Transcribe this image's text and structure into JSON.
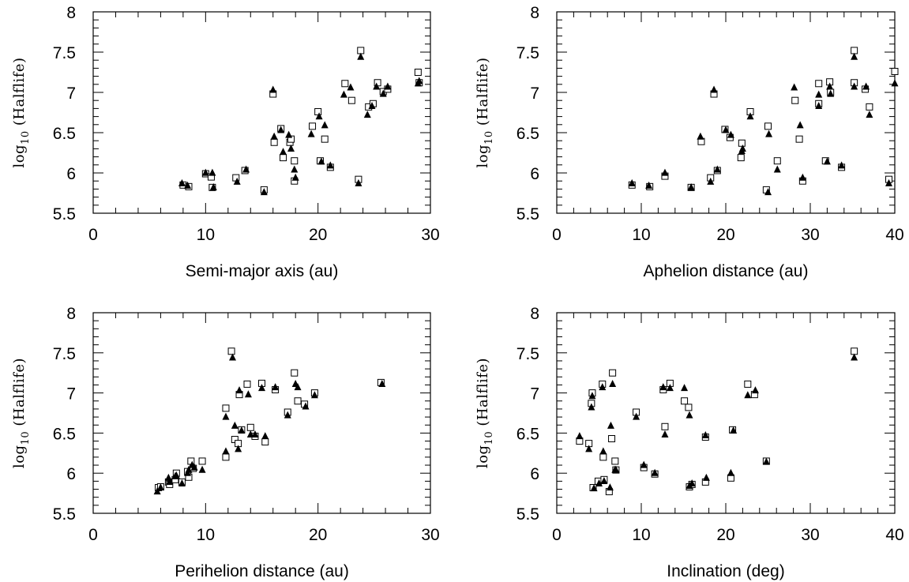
{
  "chart_data": [
    {
      "type": "scatter",
      "id": "semi-major-axis",
      "xlabel": "Semi-major axis (au)",
      "ylabel_base": "log",
      "ylabel_sub": "10",
      "ylabel_rest": " (Halflife)",
      "xlim": [
        0,
        30
      ],
      "ylim": [
        5.5,
        8
      ],
      "xticks": [
        0,
        10,
        20,
        30
      ],
      "yticks": [
        5.5,
        6,
        6.5,
        7,
        7.5,
        8
      ],
      "x_minor_step": 2,
      "y_minor_step": 0.1,
      "series": [
        {
          "marker": "open-square",
          "points": [
            [
              8.0,
              5.85
            ],
            [
              8.5,
              5.83
            ],
            [
              10.0,
              5.99
            ],
            [
              10.5,
              5.95
            ],
            [
              10.6,
              5.82
            ],
            [
              12.7,
              5.94
            ],
            [
              13.5,
              6.03
            ],
            [
              15.2,
              5.79
            ],
            [
              16.0,
              6.98
            ],
            [
              16.1,
              6.38
            ],
            [
              16.7,
              6.55
            ],
            [
              16.9,
              6.19
            ],
            [
              17.5,
              6.38
            ],
            [
              17.6,
              6.42
            ],
            [
              17.9,
              5.9
            ],
            [
              17.9,
              6.15
            ],
            [
              19.5,
              6.58
            ],
            [
              20.0,
              6.76
            ],
            [
              20.2,
              6.15
            ],
            [
              20.6,
              6.42
            ],
            [
              21.1,
              6.07
            ],
            [
              22.4,
              7.11
            ],
            [
              23.0,
              6.9
            ],
            [
              23.6,
              5.92
            ],
            [
              23.8,
              7.52
            ],
            [
              24.5,
              6.82
            ],
            [
              24.9,
              6.86
            ],
            [
              25.3,
              7.12
            ],
            [
              25.8,
              7.01
            ],
            [
              26.2,
              7.04
            ],
            [
              28.9,
              7.25
            ],
            [
              29.0,
              7.12
            ]
          ]
        },
        {
          "marker": "filled-triangle",
          "points": [
            [
              7.9,
              5.87
            ],
            [
              8.4,
              5.84
            ],
            [
              10.0,
              6.0
            ],
            [
              10.6,
              6.0
            ],
            [
              10.7,
              5.82
            ],
            [
              12.8,
              5.89
            ],
            [
              13.6,
              6.04
            ],
            [
              15.2,
              5.76
            ],
            [
              16.0,
              7.03
            ],
            [
              16.1,
              6.45
            ],
            [
              16.7,
              6.53
            ],
            [
              16.9,
              6.26
            ],
            [
              17.4,
              6.47
            ],
            [
              17.6,
              6.3
            ],
            [
              17.9,
              6.04
            ],
            [
              18.0,
              5.94
            ],
            [
              19.4,
              6.48
            ],
            [
              20.1,
              6.7
            ],
            [
              20.3,
              6.14
            ],
            [
              20.6,
              6.59
            ],
            [
              21.1,
              6.09
            ],
            [
              22.3,
              6.97
            ],
            [
              22.9,
              7.06
            ],
            [
              23.6,
              5.87
            ],
            [
              23.8,
              7.44
            ],
            [
              24.4,
              6.72
            ],
            [
              24.8,
              6.83
            ],
            [
              25.2,
              7.07
            ],
            [
              25.8,
              6.98
            ],
            [
              26.2,
              7.07
            ],
            [
              28.9,
              7.11
            ],
            [
              29.0,
              7.14
            ]
          ]
        }
      ]
    },
    {
      "type": "scatter",
      "id": "aphelion-distance",
      "xlabel": "Aphelion distance (au)",
      "ylabel_base": "log",
      "ylabel_sub": "10",
      "ylabel_rest": " (Halflife)",
      "xlim": [
        0,
        40
      ],
      "ylim": [
        5.5,
        8
      ],
      "xticks": [
        0,
        10,
        20,
        30,
        40
      ],
      "yticks": [
        5.5,
        6,
        6.5,
        7,
        7.5,
        8
      ],
      "x_minor_step": 2,
      "y_minor_step": 0.1,
      "series": [
        {
          "marker": "open-square",
          "points": [
            [
              8.9,
              5.85
            ],
            [
              11.0,
              5.83
            ],
            [
              12.8,
              5.96
            ],
            [
              15.9,
              5.82
            ],
            [
              17.1,
              6.39
            ],
            [
              18.2,
              5.94
            ],
            [
              18.6,
              6.98
            ],
            [
              19.0,
              6.03
            ],
            [
              19.9,
              6.54
            ],
            [
              20.5,
              6.44
            ],
            [
              21.8,
              6.19
            ],
            [
              21.9,
              6.37
            ],
            [
              22.9,
              6.76
            ],
            [
              24.8,
              5.79
            ],
            [
              25.0,
              6.58
            ],
            [
              26.1,
              6.15
            ],
            [
              28.2,
              6.9
            ],
            [
              28.7,
              6.42
            ],
            [
              29.1,
              5.9
            ],
            [
              31.0,
              7.11
            ],
            [
              31.0,
              6.86
            ],
            [
              31.8,
              6.15
            ],
            [
              32.3,
              7.13
            ],
            [
              32.4,
              7.0
            ],
            [
              33.7,
              6.07
            ],
            [
              35.2,
              7.52
            ],
            [
              35.2,
              7.12
            ],
            [
              36.5,
              7.04
            ],
            [
              37.0,
              6.82
            ],
            [
              39.3,
              5.92
            ],
            [
              40.0,
              7.26
            ]
          ]
        },
        {
          "marker": "filled-triangle",
          "points": [
            [
              8.9,
              5.87
            ],
            [
              10.9,
              5.84
            ],
            [
              12.8,
              6.0
            ],
            [
              15.9,
              5.82
            ],
            [
              17.0,
              6.45
            ],
            [
              18.2,
              5.89
            ],
            [
              18.6,
              7.03
            ],
            [
              19.0,
              6.04
            ],
            [
              20.0,
              6.53
            ],
            [
              20.6,
              6.47
            ],
            [
              21.9,
              6.27
            ],
            [
              22.0,
              6.3
            ],
            [
              22.9,
              6.7
            ],
            [
              25.0,
              5.76
            ],
            [
              25.1,
              6.48
            ],
            [
              26.1,
              6.04
            ],
            [
              28.1,
              7.06
            ],
            [
              28.8,
              6.59
            ],
            [
              29.1,
              5.94
            ],
            [
              31.0,
              6.97
            ],
            [
              31.0,
              6.83
            ],
            [
              32.0,
              6.14
            ],
            [
              32.3,
              7.07
            ],
            [
              32.4,
              6.98
            ],
            [
              33.7,
              6.09
            ],
            [
              35.2,
              7.44
            ],
            [
              35.2,
              7.07
            ],
            [
              36.6,
              7.07
            ],
            [
              37.0,
              6.72
            ],
            [
              39.3,
              5.87
            ],
            [
              40.0,
              7.11
            ]
          ]
        }
      ]
    },
    {
      "type": "scatter",
      "id": "perihelion-distance",
      "xlabel": "Perihelion distance (au)",
      "ylabel_base": "log",
      "ylabel_sub": "10",
      "ylabel_rest": " (Halflife)",
      "xlim": [
        0,
        30
      ],
      "ylim": [
        5.5,
        8
      ],
      "xticks": [
        0,
        10,
        20,
        30
      ],
      "yticks": [
        5.5,
        6,
        6.5,
        7,
        7.5,
        8
      ],
      "x_minor_step": 2,
      "y_minor_step": 0.1,
      "series": [
        {
          "marker": "open-square",
          "points": [
            [
              5.8,
              5.82
            ],
            [
              6.0,
              5.83
            ],
            [
              6.7,
              5.89
            ],
            [
              6.8,
              5.86
            ],
            [
              7.3,
              5.92
            ],
            [
              7.4,
              6.0
            ],
            [
              7.9,
              5.89
            ],
            [
              8.4,
              6.02
            ],
            [
              8.5,
              5.95
            ],
            [
              8.7,
              6.15
            ],
            [
              8.9,
              6.06
            ],
            [
              9.7,
              6.15
            ],
            [
              11.8,
              6.81
            ],
            [
              11.8,
              6.2
            ],
            [
              12.3,
              7.52
            ],
            [
              12.6,
              6.42
            ],
            [
              12.9,
              6.37
            ],
            [
              13.0,
              6.98
            ],
            [
              13.2,
              6.54
            ],
            [
              13.7,
              7.11
            ],
            [
              14.0,
              6.57
            ],
            [
              14.4,
              6.46
            ],
            [
              15.0,
              7.12
            ],
            [
              15.3,
              6.39
            ],
            [
              16.2,
              7.04
            ],
            [
              17.3,
              6.76
            ],
            [
              17.9,
              7.25
            ],
            [
              18.2,
              6.9
            ],
            [
              18.8,
              6.86
            ],
            [
              19.7,
              7.0
            ],
            [
              25.6,
              7.13
            ]
          ]
        },
        {
          "marker": "filled-triangle",
          "points": [
            [
              5.7,
              5.77
            ],
            [
              6.0,
              5.82
            ],
            [
              6.7,
              5.94
            ],
            [
              6.8,
              5.89
            ],
            [
              7.3,
              5.96
            ],
            [
              7.4,
              5.97
            ],
            [
              7.9,
              5.87
            ],
            [
              8.4,
              6.0
            ],
            [
              8.5,
              6.04
            ],
            [
              8.8,
              6.1
            ],
            [
              9.0,
              6.07
            ],
            [
              9.7,
              6.04
            ],
            [
              11.8,
              6.7
            ],
            [
              11.8,
              6.27
            ],
            [
              12.4,
              7.44
            ],
            [
              12.6,
              6.59
            ],
            [
              12.9,
              6.3
            ],
            [
              13.0,
              7.03
            ],
            [
              13.2,
              6.53
            ],
            [
              13.8,
              6.98
            ],
            [
              14.0,
              6.48
            ],
            [
              14.4,
              6.48
            ],
            [
              15.0,
              7.06
            ],
            [
              15.3,
              6.46
            ],
            [
              16.2,
              7.07
            ],
            [
              17.3,
              6.72
            ],
            [
              18.0,
              7.11
            ],
            [
              18.2,
              7.07
            ],
            [
              18.9,
              6.83
            ],
            [
              19.7,
              6.97
            ],
            [
              25.7,
              7.11
            ]
          ]
        }
      ]
    },
    {
      "type": "scatter",
      "id": "inclination",
      "xlabel": "Inclination (deg)",
      "ylabel_base": "log",
      "ylabel_sub": "10",
      "ylabel_rest": " (Halflife)",
      "xlim": [
        0,
        40
      ],
      "ylim": [
        5.5,
        8
      ],
      "xticks": [
        0,
        10,
        20,
        30,
        40
      ],
      "yticks": [
        5.5,
        6,
        6.5,
        7,
        7.5,
        8
      ],
      "x_minor_step": 2,
      "y_minor_step": 0.1,
      "series": [
        {
          "marker": "open-square",
          "points": [
            [
              2.7,
              6.4
            ],
            [
              3.8,
              6.37
            ],
            [
              4.2,
              7.0
            ],
            [
              4.1,
              6.87
            ],
            [
              4.3,
              5.82
            ],
            [
              4.9,
              5.9
            ],
            [
              5.4,
              7.11
            ],
            [
              5.5,
              6.2
            ],
            [
              5.6,
              5.92
            ],
            [
              6.2,
              5.77
            ],
            [
              6.5,
              6.43
            ],
            [
              6.6,
              7.25
            ],
            [
              6.9,
              6.15
            ],
            [
              7.0,
              6.04
            ],
            [
              9.4,
              6.76
            ],
            [
              10.3,
              6.07
            ],
            [
              11.6,
              5.99
            ],
            [
              12.6,
              7.04
            ],
            [
              12.8,
              6.58
            ],
            [
              13.4,
              7.12
            ],
            [
              15.1,
              6.9
            ],
            [
              15.6,
              6.82
            ],
            [
              15.7,
              5.83
            ],
            [
              16.0,
              5.86
            ],
            [
              17.6,
              6.45
            ],
            [
              17.6,
              5.89
            ],
            [
              20.6,
              5.94
            ],
            [
              20.8,
              6.54
            ],
            [
              22.6,
              7.11
            ],
            [
              23.4,
              6.98
            ],
            [
              24.8,
              6.15
            ],
            [
              35.2,
              7.52
            ]
          ]
        },
        {
          "marker": "filled-triangle",
          "points": [
            [
              2.7,
              6.46
            ],
            [
              3.8,
              6.3
            ],
            [
              4.2,
              6.96
            ],
            [
              4.1,
              6.82
            ],
            [
              4.4,
              5.81
            ],
            [
              5.0,
              5.87
            ],
            [
              5.4,
              7.07
            ],
            [
              5.5,
              6.27
            ],
            [
              5.6,
              5.9
            ],
            [
              6.3,
              5.82
            ],
            [
              6.4,
              6.59
            ],
            [
              6.6,
              7.11
            ],
            [
              7.0,
              6.04
            ],
            [
              6.9,
              6.04
            ],
            [
              9.4,
              6.7
            ],
            [
              10.3,
              6.1
            ],
            [
              11.6,
              6.0
            ],
            [
              12.6,
              7.07
            ],
            [
              12.8,
              6.48
            ],
            [
              13.4,
              7.06
            ],
            [
              15.1,
              7.06
            ],
            [
              15.7,
              6.72
            ],
            [
              15.7,
              5.84
            ],
            [
              16.0,
              5.87
            ],
            [
              17.6,
              6.47
            ],
            [
              17.7,
              5.94
            ],
            [
              20.6,
              6.0
            ],
            [
              20.9,
              6.53
            ],
            [
              22.6,
              6.97
            ],
            [
              23.5,
              7.03
            ],
            [
              24.8,
              6.14
            ],
            [
              35.2,
              7.44
            ]
          ]
        }
      ]
    }
  ]
}
